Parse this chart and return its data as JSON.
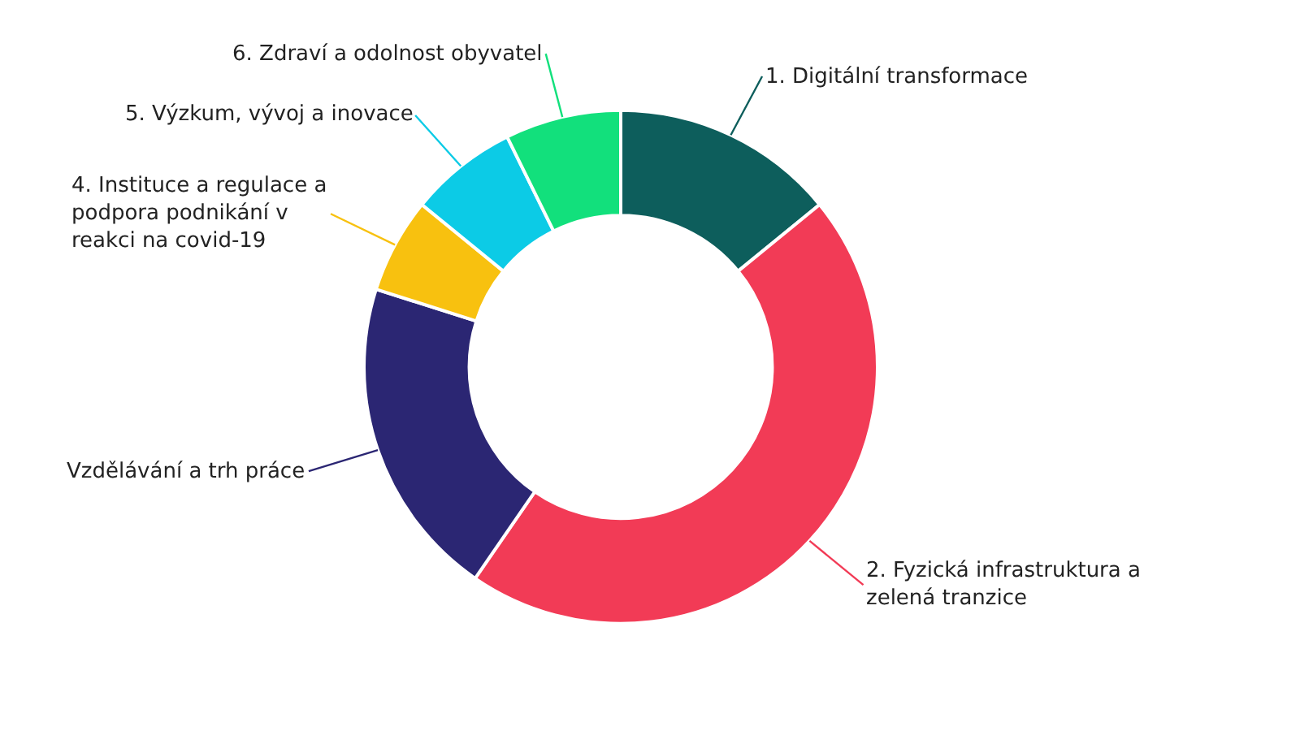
{
  "chart_data": {
    "type": "donut",
    "categories": [
      "1. Digitální transformace",
      "2. Fyzická infrastruktura a zelená tranzice",
      "Vzdělávání a trh práce",
      "4. Instituce a regulace a podpora podnikání v reakci na covid-19",
      "5. Výzkum, vývoj a inovace",
      "6. Zdraví a odolnost obyvatel"
    ],
    "values": [
      14.1,
      45.5,
      20.3,
      6.0,
      6.8,
      7.3
    ],
    "colors": [
      "#0d5e5c",
      "#f23b56",
      "#2b2673",
      "#f8c10f",
      "#0ccbe6",
      "#12e07c"
    ]
  }
}
